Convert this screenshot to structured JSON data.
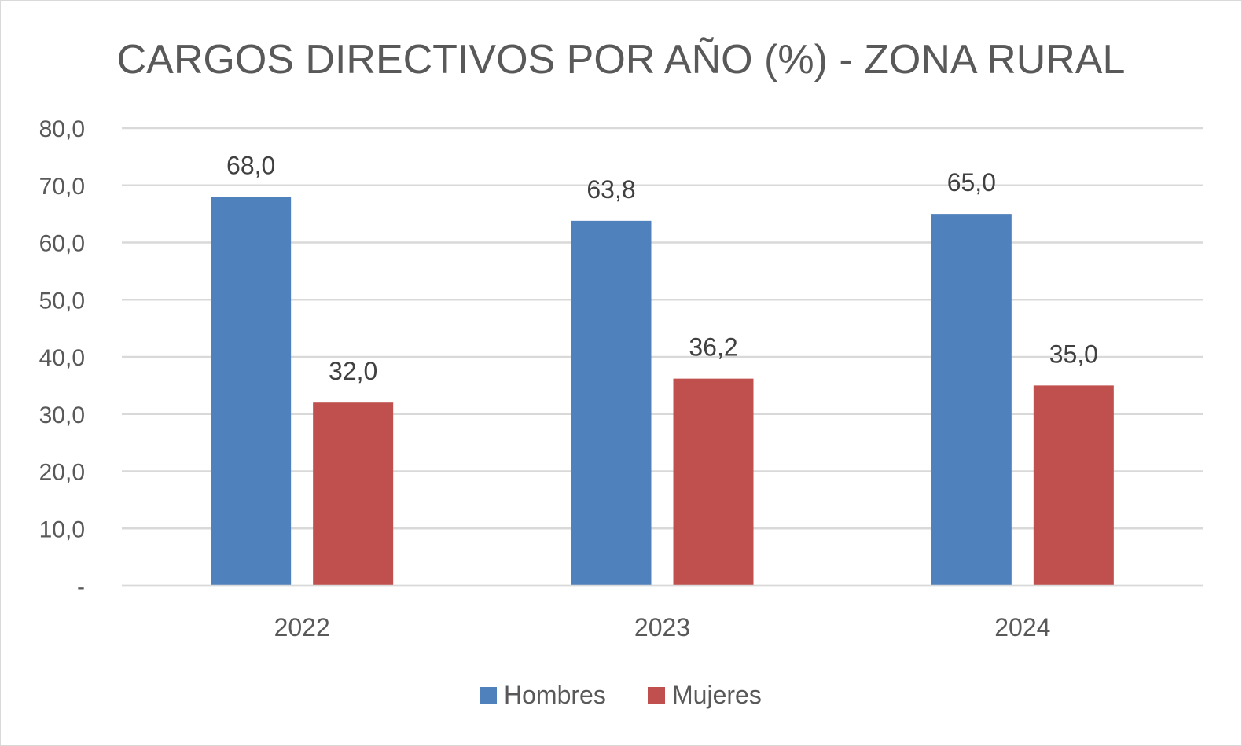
{
  "chart_data": {
    "type": "bar",
    "title": "CARGOS DIRECTIVOS POR AÑO (%) - ZONA RURAL",
    "xlabel": "",
    "ylabel": "",
    "categories": [
      "2022",
      "2023",
      "2024"
    ],
    "series": [
      {
        "name": "Hombres",
        "color": "#4f81bd",
        "values": [
          68.0,
          63.8,
          65.0
        ],
        "labels": [
          "68,0",
          "63,8",
          "65,0"
        ]
      },
      {
        "name": "Mujeres",
        "color": "#c0504d",
        "values": [
          32.0,
          36.2,
          35.0
        ],
        "labels": [
          "32,0",
          "36,2",
          "35,0"
        ]
      }
    ],
    "ylim": [
      0,
      80
    ],
    "yticks": [
      {
        "value": 0,
        "label": "-"
      },
      {
        "value": 10,
        "label": "10,0"
      },
      {
        "value": 20,
        "label": "20,0"
      },
      {
        "value": 30,
        "label": "30,0"
      },
      {
        "value": 40,
        "label": "40,0"
      },
      {
        "value": 50,
        "label": "50,0"
      },
      {
        "value": 60,
        "label": "60,0"
      },
      {
        "value": 70,
        "label": "70,0"
      },
      {
        "value": 80,
        "label": "80,0"
      }
    ],
    "grid": true,
    "legend": "bottom-center",
    "gridline_color": "#d9d9d9"
  }
}
